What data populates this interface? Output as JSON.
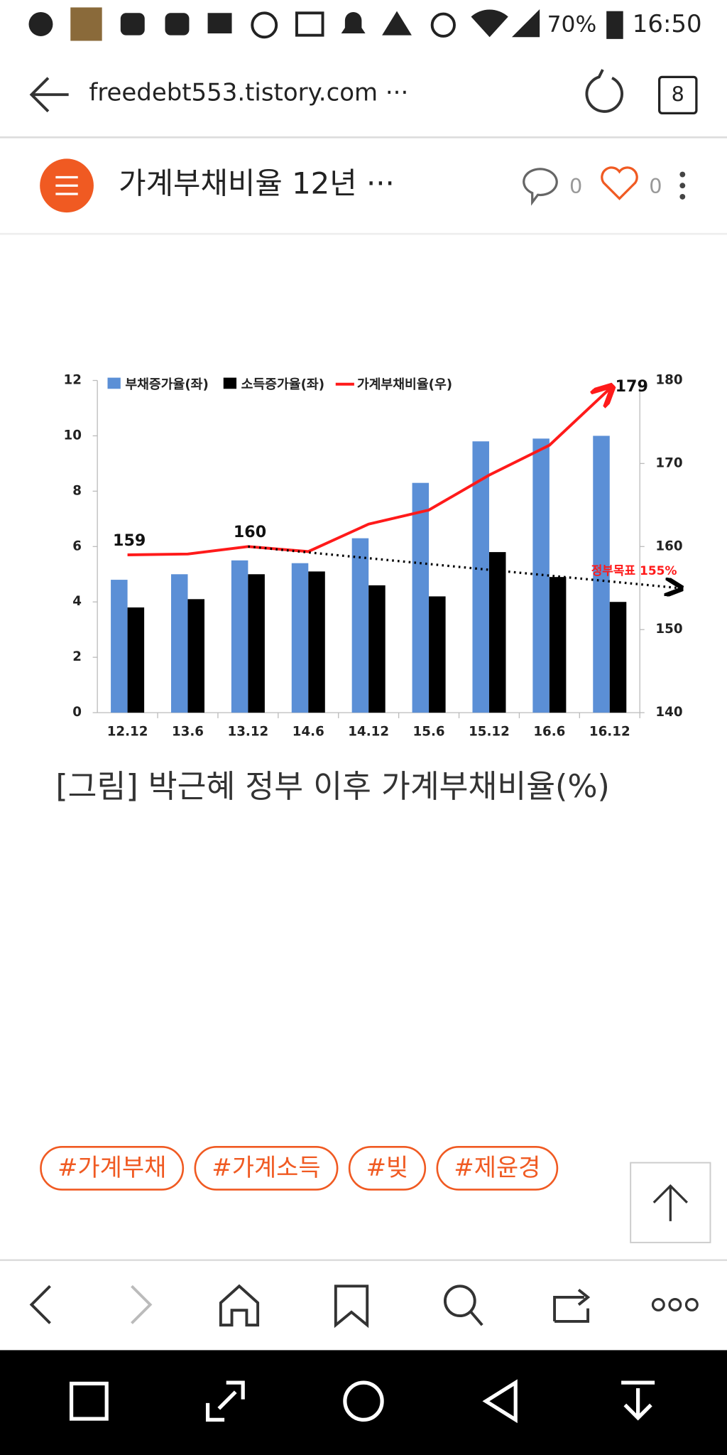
{
  "status_bar": {
    "battery": "70%",
    "time": "16:50"
  },
  "address_bar": {
    "url": "freedebt553.tistory.com ···",
    "tab_count": "8"
  },
  "header": {
    "title": "가계부채비율 12년 ···",
    "comment_count": "0",
    "like_count": "0"
  },
  "chart_data": {
    "type": "bar",
    "categories": [
      "12.12",
      "13.6",
      "13.12",
      "14.6",
      "14.12",
      "15.6",
      "15.12",
      "16.6",
      "16.12"
    ],
    "series": [
      {
        "name": "부채증가율(좌)",
        "color": "#5b8fd6",
        "values": [
          4.8,
          5.0,
          5.5,
          5.4,
          6.3,
          8.3,
          9.8,
          9.9,
          10.0
        ]
      },
      {
        "name": "소득증가율(좌)",
        "color": "#000000",
        "values": [
          3.8,
          4.1,
          5.0,
          5.1,
          4.6,
          4.2,
          5.8,
          4.9,
          4.0
        ]
      },
      {
        "name": "가계부채비율(우)",
        "color": "#ff1a1a",
        "type": "line",
        "axis": "y2",
        "values": [
          159,
          159.1,
          160,
          159.4,
          162.7,
          164.4,
          168.6,
          172.2,
          179
        ],
        "value_labels": [
          "159",
          null,
          "160",
          null,
          null,
          null,
          null,
          null,
          "179"
        ]
      }
    ],
    "ylim": [
      0,
      12
    ],
    "yticks": [
      0,
      2,
      4,
      6,
      8,
      10,
      12
    ],
    "y2lim": [
      140,
      180
    ],
    "y2ticks": [
      140,
      150,
      160,
      170,
      180
    ],
    "annotation": {
      "text": "정부목표 155%",
      "value": 155,
      "color": "#ff1a1a"
    }
  },
  "caption": "[그림] 박근혜 정부 이후 가계부채비율(%)",
  "tags": [
    "#가계부채",
    "#가계소득",
    "#빚",
    "#제윤경"
  ]
}
